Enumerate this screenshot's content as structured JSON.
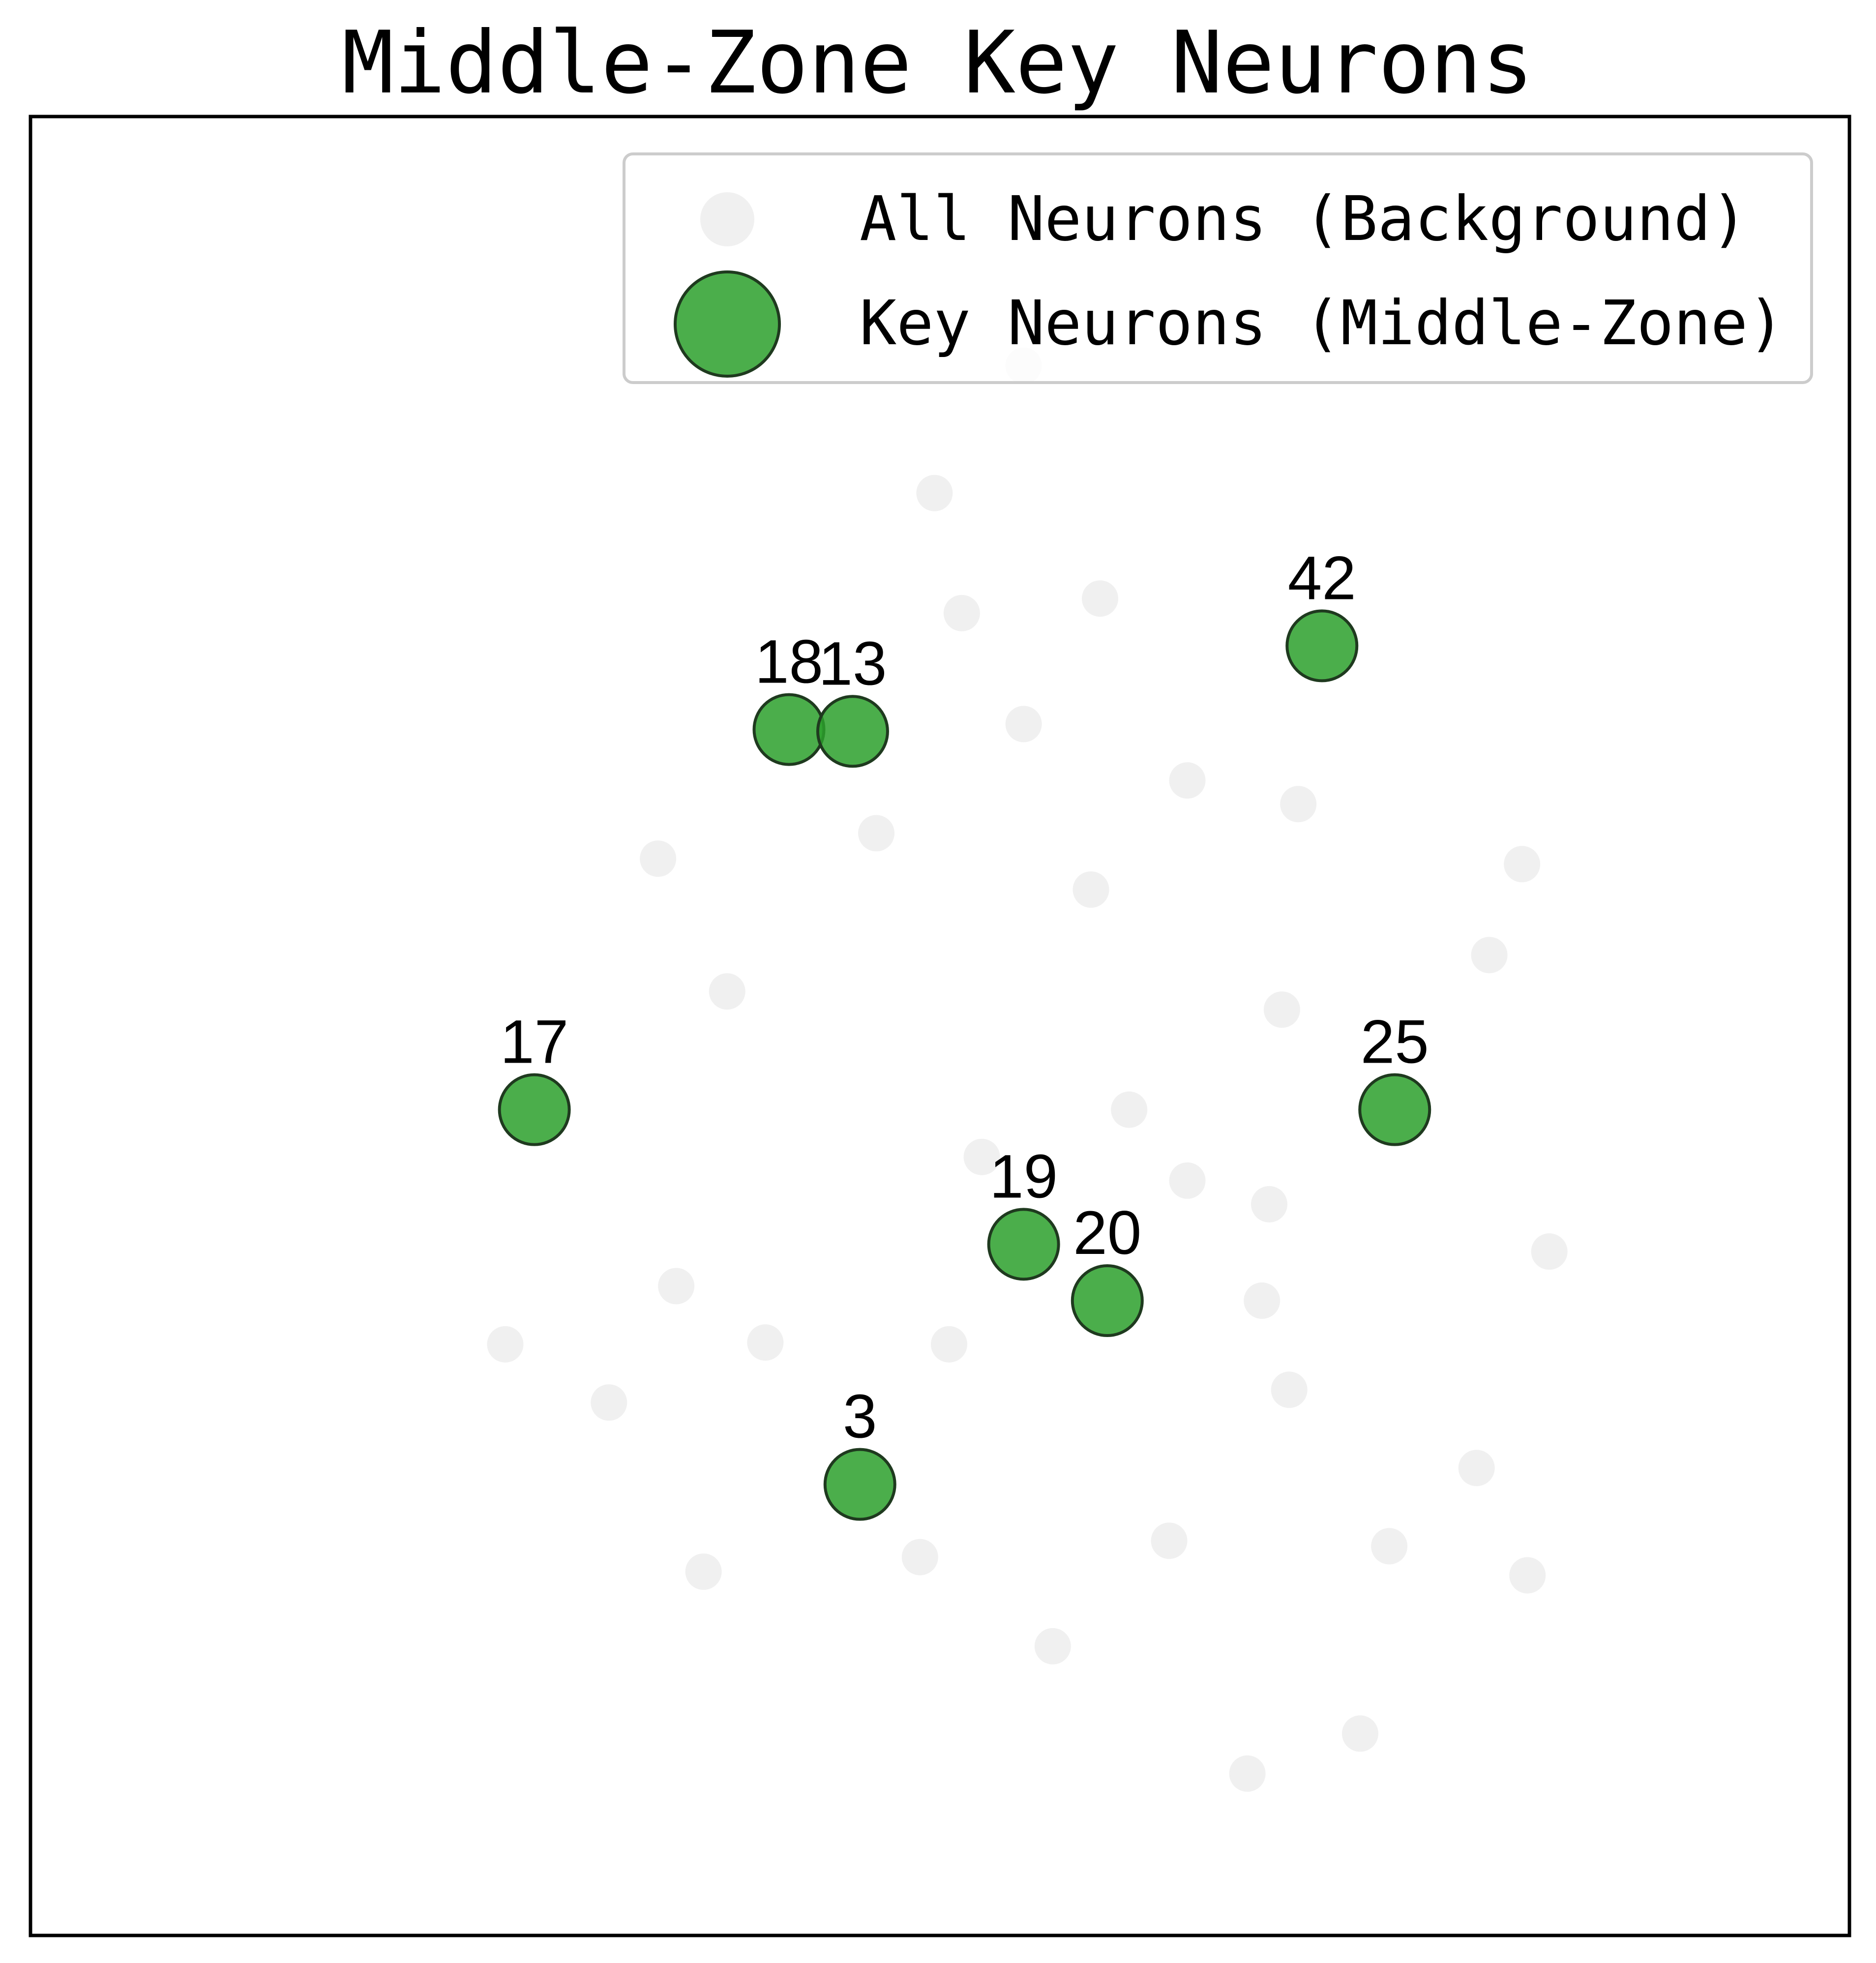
{
  "chart_data": {
    "type": "scatter",
    "title": "Middle-Zone Key Neurons",
    "xlabel": "",
    "ylabel": "",
    "axes_visible": false,
    "xlim": [
      0,
      1000
    ],
    "ylim": [
      0,
      1000
    ],
    "grid": false,
    "legend_position": "top-right",
    "colors": {
      "background_points": "#e6e6e6",
      "key_points": "#2ca02c",
      "key_points_edge": "#1f3a1f",
      "frame": "#000000",
      "legend_border": "#cccccc"
    },
    "series": [
      {
        "name": "All Neurons (Background)",
        "points": [
          {
            "x": 546,
            "y": 863
          },
          {
            "x": 497,
            "y": 793
          },
          {
            "x": 512,
            "y": 727
          },
          {
            "x": 588,
            "y": 735
          },
          {
            "x": 465,
            "y": 606
          },
          {
            "x": 546,
            "y": 666
          },
          {
            "x": 636,
            "y": 635
          },
          {
            "x": 697,
            "y": 622
          },
          {
            "x": 583,
            "y": 575
          },
          {
            "x": 820,
            "y": 589
          },
          {
            "x": 688,
            "y": 509
          },
          {
            "x": 802,
            "y": 539
          },
          {
            "x": 345,
            "y": 592
          },
          {
            "x": 383,
            "y": 519
          },
          {
            "x": 604,
            "y": 454
          },
          {
            "x": 523,
            "y": 428
          },
          {
            "x": 636,
            "y": 415
          },
          {
            "x": 681,
            "y": 402
          },
          {
            "x": 355,
            "y": 357
          },
          {
            "x": 261,
            "y": 325
          },
          {
            "x": 318,
            "y": 293
          },
          {
            "x": 404,
            "y": 326
          },
          {
            "x": 505,
            "y": 325
          },
          {
            "x": 835,
            "y": 376
          },
          {
            "x": 677,
            "y": 349
          },
          {
            "x": 692,
            "y": 300
          },
          {
            "x": 795,
            "y": 257
          },
          {
            "x": 489,
            "y": 208
          },
          {
            "x": 626,
            "y": 217
          },
          {
            "x": 747,
            "y": 214
          },
          {
            "x": 823,
            "y": 198
          },
          {
            "x": 370,
            "y": 200
          },
          {
            "x": 562,
            "y": 159
          },
          {
            "x": 731,
            "y": 111
          },
          {
            "x": 669,
            "y": 89
          }
        ]
      },
      {
        "name": "Key Neurons (Middle-Zone)",
        "points": [
          {
            "x": 710,
            "y": 709,
            "label": "42"
          },
          {
            "x": 417,
            "y": 663,
            "label": "18"
          },
          {
            "x": 452,
            "y": 662,
            "label": "13"
          },
          {
            "x": 277,
            "y": 454,
            "label": "17"
          },
          {
            "x": 750,
            "y": 454,
            "label": "25"
          },
          {
            "x": 546,
            "y": 380,
            "label": "19"
          },
          {
            "x": 592,
            "y": 349,
            "label": "20"
          },
          {
            "x": 456,
            "y": 248,
            "label": "3"
          }
        ]
      }
    ]
  }
}
